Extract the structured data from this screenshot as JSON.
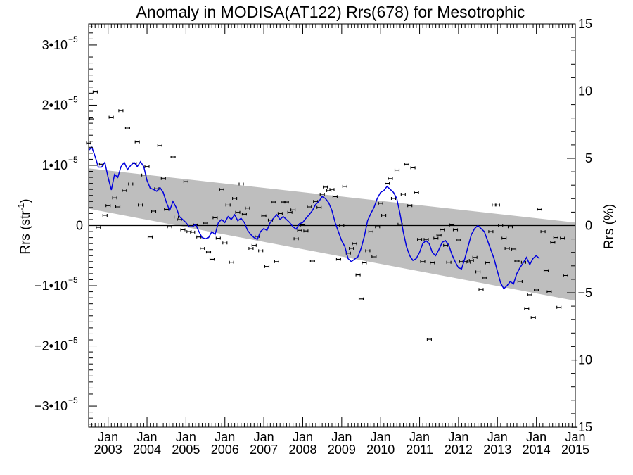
{
  "chart_data": {
    "type": "line",
    "title": "Anomaly in MODISA(AT122) Rrs(678) for Mesotrophic",
    "ylabel_left": {
      "base": "Rrs (str",
      "sup": "-1",
      "close": ")"
    },
    "ylabel_right": "Rrs (%)",
    "xlim": [
      2002.5,
      2015.0
    ],
    "ylim": [
      -3.35e-05,
      3.35e-05
    ],
    "ylim_right": [
      -15,
      15
    ],
    "left_ticks": [
      {
        "value": -3e-05,
        "mant": "−3•10",
        "exp": "−5"
      },
      {
        "value": -2e-05,
        "mant": "−2•10",
        "exp": "−5"
      },
      {
        "value": -1e-05,
        "mant": "−1•10",
        "exp": "−5"
      },
      {
        "value": 0,
        "mant": "0",
        "exp": ""
      },
      {
        "value": 1e-05,
        "mant": "1•10",
        "exp": "−5"
      },
      {
        "value": 2e-05,
        "mant": "2•10",
        "exp": "−5"
      },
      {
        "value": 3e-05,
        "mant": "3•10",
        "exp": "−5"
      }
    ],
    "right_ticks": [
      {
        "value": -15,
        "label": "−15"
      },
      {
        "value": -10,
        "label": "−10"
      },
      {
        "value": -5,
        "label": "−5"
      },
      {
        "value": 0,
        "label": "0"
      },
      {
        "value": 5,
        "label": "5"
      },
      {
        "value": 10,
        "label": "10"
      },
      {
        "value": 15,
        "label": "15"
      }
    ],
    "x_ticks": [
      {
        "value": 2003.0,
        "month": "Jan",
        "year": "2003"
      },
      {
        "value": 2004.0,
        "month": "Jan",
        "year": "2004"
      },
      {
        "value": 2005.0,
        "month": "Jan",
        "year": "2005"
      },
      {
        "value": 2006.0,
        "month": "Jan",
        "year": "2006"
      },
      {
        "value": 2007.0,
        "month": "Jan",
        "year": "2007"
      },
      {
        "value": 2008.0,
        "month": "Jan",
        "year": "2008"
      },
      {
        "value": 2009.0,
        "month": "Jan",
        "year": "2009"
      },
      {
        "value": 2010.0,
        "month": "Jan",
        "year": "2010"
      },
      {
        "value": 2011.0,
        "month": "Jan",
        "year": "2011"
      },
      {
        "value": 2012.0,
        "month": "Jan",
        "year": "2012"
      },
      {
        "value": 2013.0,
        "month": "Jan",
        "year": "2013"
      },
      {
        "value": 2014.0,
        "month": "Jan",
        "year": "2014"
      },
      {
        "value": 2015.0,
        "month": "Jan",
        "year": "2015"
      }
    ],
    "band": {
      "x": [
        2002.5,
        2015.0
      ],
      "upper": [
        9.5e-06,
        5e-07
      ],
      "lower": [
        2.8e-06,
        -1.25e-05
      ]
    },
    "zero_line": 0,
    "monthly_anomaly": [
      [
        2002.5,
        1.37e-05
      ],
      [
        2002.58,
        1.77e-05
      ],
      [
        2002.67,
        2.22e-05
      ],
      [
        2002.75,
        -3e-07
      ],
      [
        2002.83,
        1.02e-05
      ],
      [
        2002.92,
        1.7e-06
      ],
      [
        2003.0,
        3.3e-06
      ],
      [
        2003.08,
        1.8e-05
      ],
      [
        2003.17,
        4.6e-06
      ],
      [
        2003.25,
        3.1e-06
      ],
      [
        2003.33,
        1.91e-05
      ],
      [
        2003.42,
        5.8e-06
      ],
      [
        2003.5,
        1.62e-05
      ],
      [
        2003.58,
        6.9e-06
      ],
      [
        2003.67,
        1.03e-05
      ],
      [
        2003.75,
        1.39e-05
      ],
      [
        2003.83,
        3.4e-06
      ],
      [
        2003.92,
        8.4e-06
      ],
      [
        2004.0,
        9.8e-06
      ],
      [
        2004.08,
        -1.9e-06
      ],
      [
        2004.17,
        2.4e-06
      ],
      [
        2004.25,
        6.1e-06
      ],
      [
        2004.33,
        1.33e-05
      ],
      [
        2004.42,
        7.8e-06
      ],
      [
        2004.5,
        2.7e-06
      ],
      [
        2004.58,
        -2e-07
      ],
      [
        2004.67,
        1.14e-05
      ],
      [
        2004.75,
        1.4e-06
      ],
      [
        2004.83,
        1e-06
      ],
      [
        2004.92,
        -7e-07
      ],
      [
        2005.0,
        7.3e-06
      ],
      [
        2005.08,
        -1e-06
      ],
      [
        2005.17,
        -1.1e-06
      ],
      [
        2005.25,
        1e-07
      ],
      [
        2005.33,
        -1.9e-06
      ],
      [
        2005.42,
        -3.8e-06
      ],
      [
        2005.5,
        4e-07
      ],
      [
        2005.58,
        -4.4e-06
      ],
      [
        2005.67,
        -5.6e-06
      ],
      [
        2005.75,
        1.3e-06
      ],
      [
        2005.83,
        -2.1e-06
      ],
      [
        2005.92,
        6e-06
      ],
      [
        2006.0,
        -2.9e-06
      ],
      [
        2006.08,
        3.4e-06
      ],
      [
        2006.17,
        -6.1e-06
      ],
      [
        2006.25,
        4.5e-06
      ],
      [
        2006.33,
        2.2e-06
      ],
      [
        2006.42,
        6.9e-06
      ],
      [
        2006.5,
        1.9e-06
      ],
      [
        2006.58,
        2.9e-06
      ],
      [
        2006.67,
        -3.8e-06
      ],
      [
        2006.75,
        -3.3e-06
      ],
      [
        2006.83,
        -1.8e-06
      ],
      [
        2006.92,
        -4.2e-06
      ],
      [
        2007.0,
        1.6e-06
      ],
      [
        2007.08,
        -6.8e-06
      ],
      [
        2007.17,
        9e-07
      ],
      [
        2007.25,
        3.9e-06
      ],
      [
        2007.33,
        -6e-06
      ],
      [
        2007.42,
        2e-06
      ],
      [
        2007.5,
        3.9e-06
      ],
      [
        2007.58,
        3.9e-06
      ],
      [
        2007.67,
        2.2e-06
      ],
      [
        2007.75,
        2.6e-06
      ],
      [
        2007.83,
        -2.2e-06
      ],
      [
        2007.92,
        -8e-07
      ],
      [
        2008.0,
        1e-07
      ],
      [
        2008.08,
        -9e-07
      ],
      [
        2008.17,
        3.1e-06
      ],
      [
        2008.25,
        -5.9e-06
      ],
      [
        2008.33,
        4e-06
      ],
      [
        2008.42,
        3e-06
      ],
      [
        2008.5,
        5.2e-06
      ],
      [
        2008.58,
        6.4e-06
      ],
      [
        2008.67,
        5.8e-06
      ],
      [
        2008.75,
        6e-06
      ],
      [
        2008.83,
        4.8e-06
      ],
      [
        2008.92,
        -5.6e-06
      ],
      [
        2009.0,
        0.0
      ],
      [
        2009.08,
        6.5e-06
      ],
      [
        2009.17,
        -4.6e-06
      ],
      [
        2009.25,
        -3.8e-06
      ],
      [
        2009.33,
        -3e-06
      ],
      [
        2009.42,
        -8.2e-06
      ],
      [
        2009.5,
        -1.22e-05
      ],
      [
        2009.58,
        -6.2e-06
      ],
      [
        2009.67,
        -4.2e-06
      ],
      [
        2009.75,
        -1e-06
      ],
      [
        2009.83,
        -5.2e-06
      ],
      [
        2009.92,
        -2e-07
      ],
      [
        2010.0,
        3.7e-06
      ],
      [
        2010.08,
        1.7e-06
      ],
      [
        2010.17,
        7e-06
      ],
      [
        2010.25,
        7.8e-06
      ],
      [
        2010.33,
        4.5e-06
      ],
      [
        2010.42,
        9.2e-06
      ],
      [
        2010.5,
        2e-07
      ],
      [
        2010.58,
        5.2e-06
      ],
      [
        2010.67,
        1.02e-05
      ],
      [
        2010.75,
        3.3e-06
      ],
      [
        2010.83,
        9.6e-06
      ],
      [
        2010.92,
        5.5e-06
      ],
      [
        2011.0,
        -2.3e-06
      ],
      [
        2011.08,
        -6e-06
      ],
      [
        2011.17,
        -2.3e-06
      ],
      [
        2011.25,
        -1.89e-05
      ],
      [
        2011.33,
        -6.2e-06
      ],
      [
        2011.42,
        -2.1e-06
      ],
      [
        2011.5,
        -1.6e-06
      ],
      [
        2011.58,
        -7e-07
      ],
      [
        2011.67,
        -3.3e-06
      ],
      [
        2011.75,
        -6.1e-06
      ],
      [
        2011.83,
        1e-07
      ],
      [
        2011.92,
        -7e-07
      ],
      [
        2012.0,
        -2.4e-06
      ],
      [
        2012.08,
        -6e-06
      ],
      [
        2012.17,
        -6e-06
      ],
      [
        2012.25,
        -6.1e-06
      ],
      [
        2012.33,
        -5.8e-06
      ],
      [
        2012.42,
        -5.3e-06
      ],
      [
        2012.5,
        -7.7e-06
      ],
      [
        2012.58,
        -1.06e-05
      ],
      [
        2012.67,
        -8.7e-06
      ],
      [
        2012.75,
        -6.2e-06
      ],
      [
        2012.83,
        -1e-06
      ],
      [
        2012.92,
        3.4e-06
      ],
      [
        2013.0,
        3.4e-06
      ],
      [
        2013.08,
        0.0
      ],
      [
        2013.17,
        -2.1e-06
      ],
      [
        2013.25,
        -3.8e-06
      ],
      [
        2013.33,
        -2e-07
      ],
      [
        2013.42,
        -3.9e-06
      ],
      [
        2013.5,
        -5.9e-06
      ],
      [
        2013.58,
        -9.3e-06
      ],
      [
        2013.67,
        -6.1e-06
      ],
      [
        2013.75,
        -1.38e-05
      ],
      [
        2013.83,
        -1.15e-05
      ],
      [
        2013.92,
        -1.53e-05
      ],
      [
        2014.0,
        -1.07e-05
      ],
      [
        2014.08,
        2.7e-06
      ],
      [
        2014.17,
        -1e-06
      ],
      [
        2014.25,
        -7.5e-06
      ],
      [
        2014.33,
        -1.1e-05
      ],
      [
        2014.42,
        -2.8e-06
      ],
      [
        2014.5,
        -2e-06
      ],
      [
        2014.58,
        -1.36e-05
      ],
      [
        2014.67,
        -2.1e-06
      ],
      [
        2014.75,
        -8.3e-06
      ]
    ],
    "smoothed_series": {
      "x_start": 2002.5,
      "x_step": 0.0833,
      "values": [
        1.25e-05,
        1.3e-05,
        1.15e-05,
        9.7e-06,
        9.7e-06,
        1.05e-05,
        8e-06,
        5.9e-06,
        8.5e-06,
        8e-06,
        9.8e-06,
        1.05e-05,
        9.3e-06,
        1e-05,
        1.05e-05,
        9.8e-06,
        1.06e-05,
        9.8e-06,
        7.5e-06,
        6.2e-06,
        6e-06,
        5.7e-06,
        6.3e-06,
        5.5e-06,
        3.8e-06,
        2.5e-06,
        4e-06,
        3e-06,
        1.5e-06,
        1e-06,
        5e-07,
        -2e-07,
        -2e-07,
        2e-07,
        -1e-06,
        -2e-06,
        -2.2e-06,
        -2e-06,
        -1e-06,
        -1.5e-06,
        5e-07,
        1e-06,
        5e-07,
        1.5e-06,
        1e-06,
        1.8e-06,
        8e-07,
        1.2e-06,
        5e-07,
        -8e-07,
        -1.5e-06,
        -2e-06,
        -2.3e-06,
        -1e-06,
        -5e-07,
        -8e-07,
        5e-07,
        1.2e-06,
        1.8e-06,
        1e-06,
        1.5e-06,
        1e-06,
        5e-07,
        -2e-07,
        -6e-07,
        3e-07,
        5e-07,
        1.2e-06,
        1.8e-06,
        2.5e-06,
        3.5e-06,
        4e-06,
        4.8e-06,
        4.5e-06,
        3.8e-06,
        2.5e-06,
        5e-07,
        -1e-06,
        -2.5e-06,
        -3.5e-06,
        -5.5e-06,
        -6e-06,
        -5.6e-06,
        -5.2e-06,
        -3.8e-06,
        -1.8e-06,
        8e-07,
        2e-06,
        3e-06,
        4.5e-06,
        5.5e-06,
        5.8e-06,
        6.5e-06,
        6e-06,
        5.5e-06,
        4.5e-06,
        2e-06,
        -1e-06,
        -3.5e-06,
        -5e-06,
        -5.8e-06,
        -5.5e-06,
        -4.5e-06,
        -3e-06,
        -2.5e-06,
        -3e-06,
        -4.5e-06,
        -5e-06,
        -4e-06,
        -2.8e-06,
        -2.5e-06,
        -3.2e-06,
        -4.8e-06,
        -6e-06,
        -7e-06,
        -7.2e-06,
        -5.5e-06,
        -3.5e-06,
        -1.5e-06,
        -5e-07,
        0.0,
        -5e-07,
        -1e-06,
        -2.5e-06,
        -4e-06,
        -5.5e-06,
        -7.5e-06,
        -9.5e-06,
        -1.05e-05,
        -1e-05,
        -9.3e-06,
        -9.7e-06,
        -8e-06,
        -7e-06,
        -6.2e-06,
        -5.3e-06,
        -6.5e-06,
        -5.5e-06,
        -5e-06,
        -5.5e-06
      ]
    },
    "colors": {
      "band": "#bebebe",
      "smoothed": "#0000dd",
      "points": "#000000",
      "zero_line": "#000000"
    }
  }
}
